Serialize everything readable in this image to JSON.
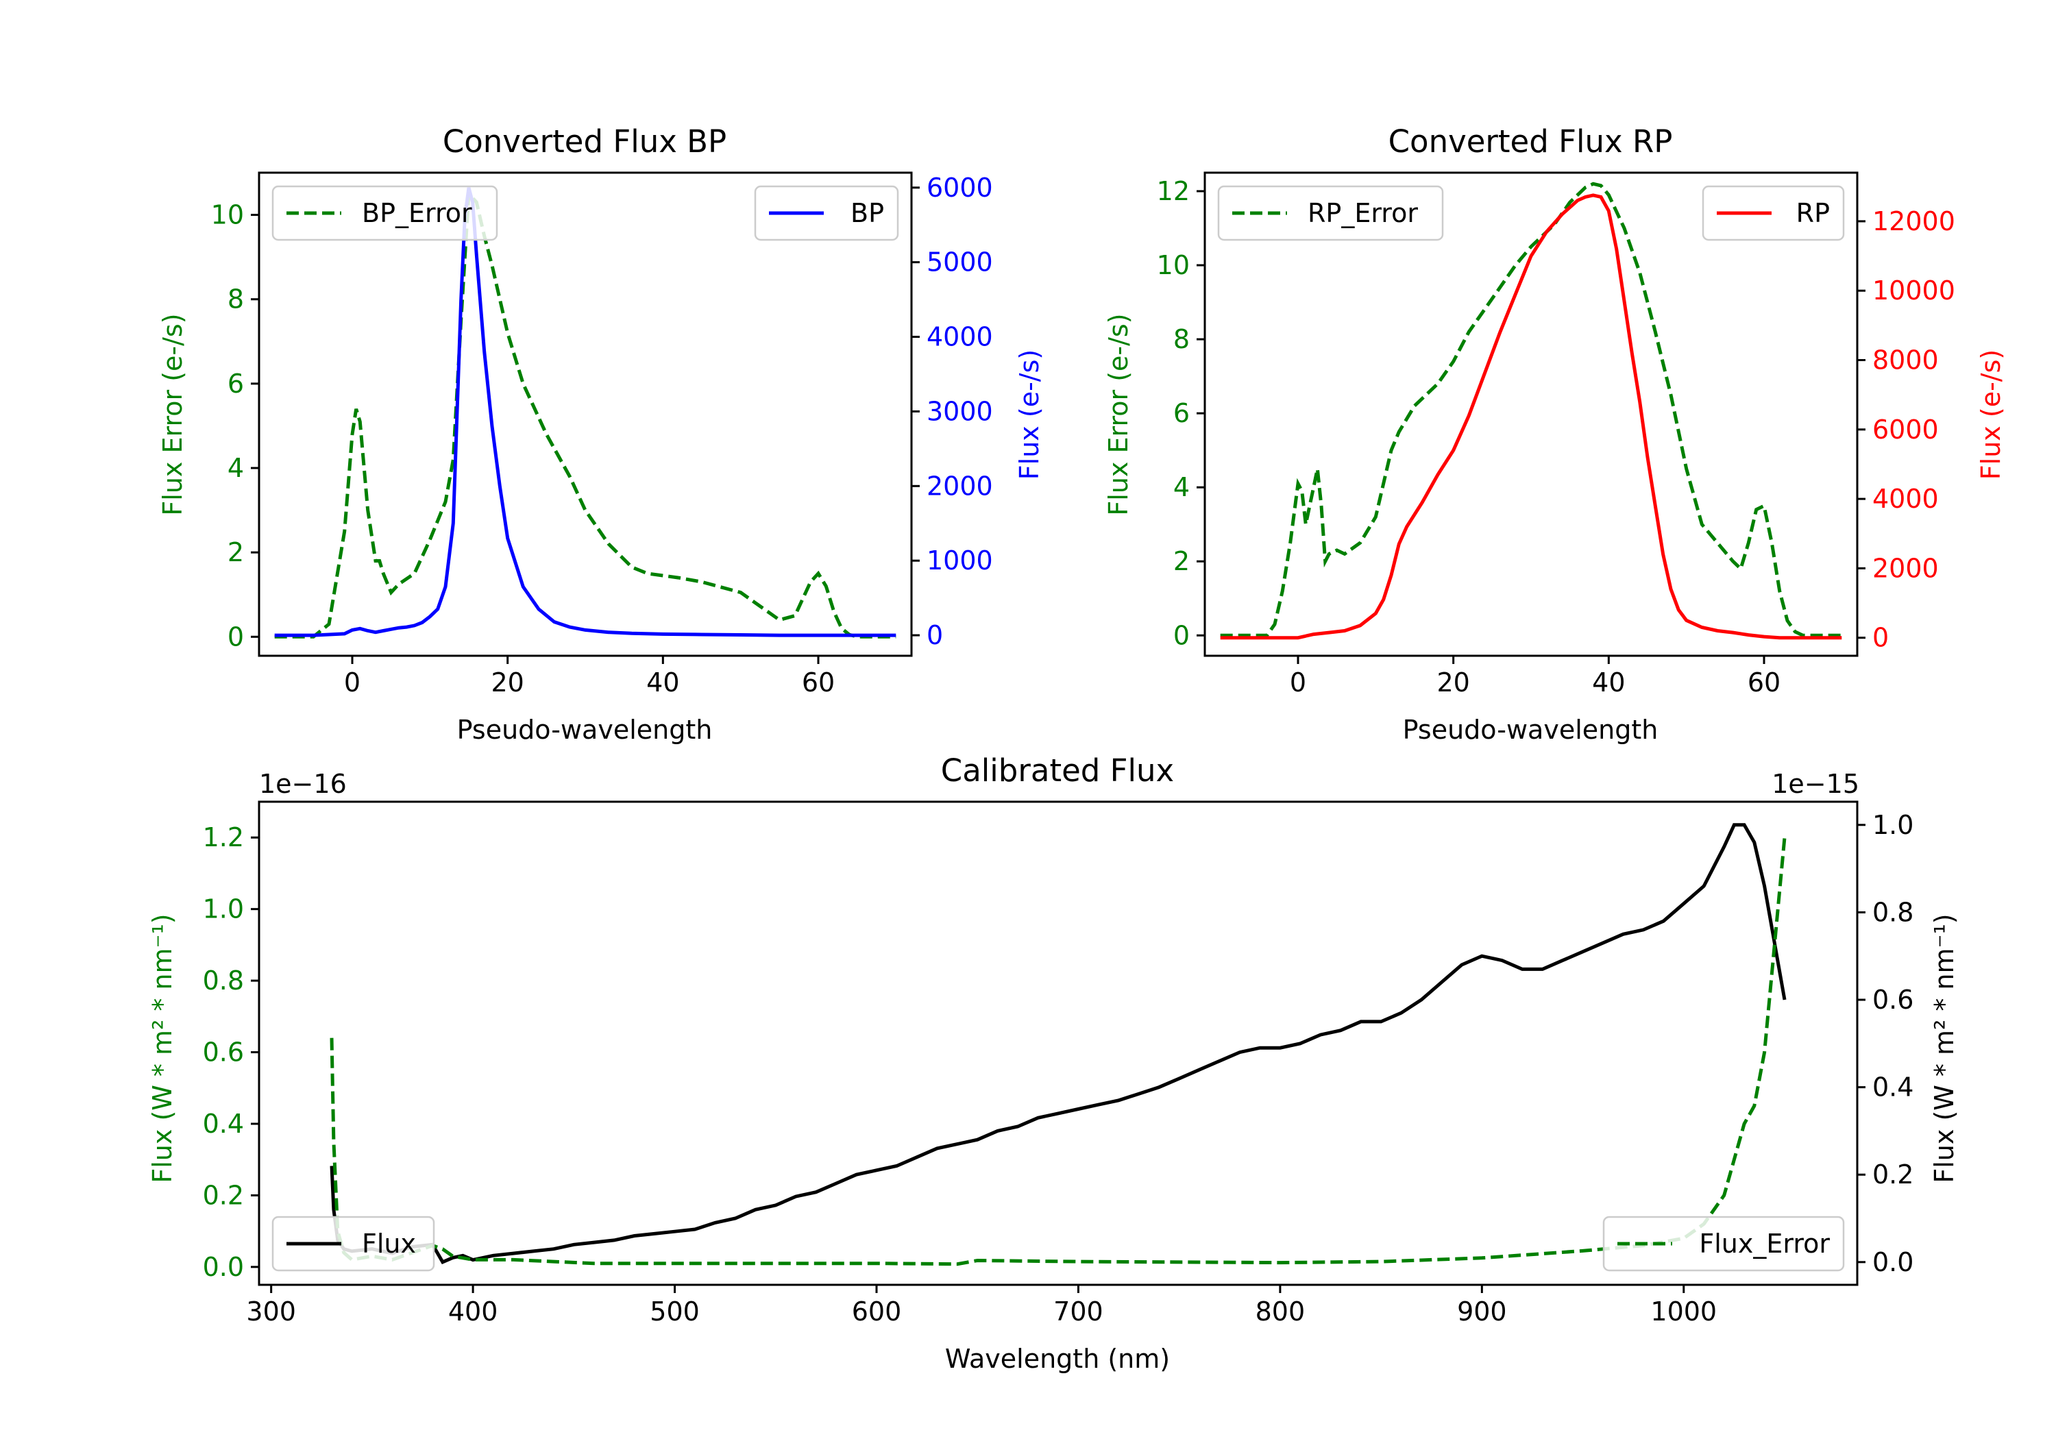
{
  "colors": {
    "error": "#008000",
    "bp": "#0000ff",
    "rp": "#ff0000",
    "flux": "#000000",
    "axis": "#000000"
  },
  "chart_data": [
    {
      "id": "bp",
      "type": "line",
      "title": "Converted Flux BP",
      "xlabel": "Pseudo-wavelength",
      "ylabel_left": "Flux Error (e-/s)",
      "ylabel_right": "Flux (e-/s)",
      "xlim": [
        -12,
        72
      ],
      "ylim_left": [
        -0.45,
        11.0
      ],
      "ylim_right": [
        -275,
        6200
      ],
      "xticks": [
        0,
        20,
        40,
        60
      ],
      "yticks_left": [
        0,
        2,
        4,
        6,
        8,
        10
      ],
      "yticks_right": [
        0,
        1000,
        2000,
        3000,
        4000,
        5000,
        6000
      ],
      "legend_left": "BP_Error",
      "legend_right": "BP",
      "series_error": {
        "name": "BP_Error",
        "x": [
          -10,
          -5,
          -3,
          -1,
          0,
          0.5,
          1,
          2,
          3,
          3.5,
          4,
          5,
          6,
          8,
          10,
          12,
          13,
          14,
          15,
          16,
          17,
          18,
          20,
          22,
          25,
          28,
          30,
          33,
          36,
          38,
          40,
          42,
          45,
          50,
          55,
          57,
          58,
          59,
          60,
          61,
          62,
          63,
          64,
          65,
          67,
          70
        ],
        "y": [
          0,
          0,
          0.3,
          2.5,
          4.8,
          5.4,
          5.1,
          3.0,
          1.8,
          1.8,
          1.5,
          1.05,
          1.25,
          1.5,
          2.3,
          3.2,
          4.2,
          7.5,
          10.5,
          10.3,
          9.5,
          8.8,
          7.2,
          6.0,
          4.8,
          3.8,
          3.0,
          2.2,
          1.65,
          1.5,
          1.45,
          1.4,
          1.3,
          1.05,
          0.4,
          0.5,
          0.9,
          1.3,
          1.5,
          1.2,
          0.6,
          0.2,
          0.05,
          0,
          0,
          0
        ]
      },
      "series_flux": {
        "name": "BP",
        "x": [
          -10,
          -5,
          -1,
          0,
          1,
          2,
          3,
          4,
          5,
          6,
          7,
          8,
          9,
          10,
          11,
          12,
          13,
          14,
          14.5,
          15,
          15.5,
          16,
          17,
          18,
          19,
          20,
          22,
          24,
          26,
          28,
          30,
          33,
          36,
          40,
          45,
          50,
          55,
          60,
          65,
          70
        ],
        "y": [
          0,
          0,
          20,
          70,
          90,
          60,
          40,
          60,
          80,
          100,
          110,
          130,
          170,
          250,
          350,
          650,
          1500,
          4500,
          5600,
          6000,
          5800,
          5100,
          3800,
          2800,
          2000,
          1300,
          650,
          350,
          180,
          110,
          70,
          40,
          25,
          15,
          10,
          5,
          0,
          0,
          0,
          0
        ]
      }
    },
    {
      "id": "rp",
      "type": "line",
      "title": "Converted Flux RP",
      "xlabel": "Pseudo-wavelength",
      "ylabel_left": "Flux Error (e-/s)",
      "ylabel_right": "Flux (e-/s)",
      "xlim": [
        -12,
        72
      ],
      "ylim_left": [
        -0.55,
        12.5
      ],
      "ylim_right": [
        -520,
        13400
      ],
      "xticks": [
        0,
        20,
        40,
        60
      ],
      "yticks_left": [
        0,
        2,
        4,
        6,
        8,
        10,
        12
      ],
      "yticks_right": [
        0,
        2000,
        4000,
        6000,
        8000,
        10000,
        12000
      ],
      "legend_left": "RP_Error",
      "legend_right": "RP",
      "series_error": {
        "name": "RP_Error",
        "x": [
          -10,
          -4,
          -3,
          -2,
          -1,
          0,
          0.5,
          1,
          2,
          2.5,
          3,
          3.5,
          4,
          5,
          6,
          8,
          10,
          12,
          13,
          15,
          18,
          20,
          22,
          24,
          26,
          28,
          30,
          33,
          35,
          37,
          38,
          39,
          40,
          42,
          44,
          46,
          48,
          50,
          52,
          54,
          56,
          57,
          58,
          59,
          60,
          61,
          62,
          63,
          64,
          65,
          70
        ],
        "y": [
          0,
          0,
          0.3,
          1.2,
          2.5,
          4.1,
          3.9,
          3.0,
          4.0,
          4.5,
          3.5,
          2.0,
          2.2,
          2.3,
          2.2,
          2.5,
          3.2,
          5.0,
          5.5,
          6.2,
          6.8,
          7.4,
          8.2,
          8.8,
          9.4,
          10.0,
          10.5,
          11.1,
          11.7,
          12.1,
          12.2,
          12.15,
          11.9,
          11.0,
          9.8,
          8.2,
          6.5,
          4.5,
          3.0,
          2.5,
          2.0,
          1.8,
          2.5,
          3.4,
          3.5,
          2.5,
          1.2,
          0.4,
          0.1,
          0,
          0
        ]
      },
      "series_flux": {
        "name": "RP",
        "x": [
          -10,
          -5,
          0,
          2,
          4,
          6,
          8,
          10,
          11,
          12,
          13,
          14,
          16,
          18,
          20,
          22,
          24,
          26,
          28,
          30,
          32,
          34,
          36,
          37,
          38,
          39,
          40,
          41,
          42,
          43,
          44,
          45,
          46,
          47,
          48,
          49,
          50,
          52,
          54,
          56,
          58,
          60,
          62,
          65,
          70
        ],
        "y": [
          0,
          0,
          0,
          100,
          150,
          200,
          350,
          700,
          1100,
          1800,
          2700,
          3200,
          3900,
          4700,
          5400,
          6400,
          7600,
          8800,
          9900,
          11000,
          11700,
          12200,
          12600,
          12700,
          12750,
          12700,
          12300,
          11200,
          9700,
          8200,
          6800,
          5200,
          3800,
          2400,
          1400,
          800,
          500,
          300,
          200,
          150,
          80,
          30,
          0,
          0,
          0
        ]
      }
    },
    {
      "id": "cal",
      "type": "line",
      "title": "Calibrated Flux",
      "xlabel": "Wavelength (nm)",
      "ylabel_left": "Flux (W * m² * nm⁻¹)",
      "ylabel_right": "Flux (W * m² * nm⁻¹)",
      "offset_left": "1e−16",
      "offset_right": "1e−15",
      "xlim": [
        294,
        1086
      ],
      "ylim_left": [
        -0.05,
        1.3
      ],
      "ylim_right": [
        -0.052,
        1.053
      ],
      "xticks": [
        300,
        400,
        500,
        600,
        700,
        800,
        900,
        1000
      ],
      "yticks_left": [
        0.0,
        0.2,
        0.4,
        0.6,
        0.8,
        1.0,
        1.2
      ],
      "ytick_labels_left": [
        "0.0",
        "0.2",
        "0.4",
        "0.6",
        "0.8",
        "1.0",
        "1.2"
      ],
      "yticks_right": [
        0.0,
        0.2,
        0.4,
        0.6,
        0.8,
        1.0
      ],
      "ytick_labels_right": [
        "0.0",
        "0.2",
        "0.4",
        "0.6",
        "0.8",
        "1.0"
      ],
      "legend_left": "Flux",
      "legend_right": "Flux_Error",
      "series_error": {
        "name": "Flux_Error",
        "x": [
          330,
          331,
          333,
          336,
          340,
          350,
          360,
          370,
          380,
          385,
          390,
          400,
          420,
          440,
          460,
          500,
          550,
          600,
          640,
          650,
          700,
          800,
          850,
          900,
          950,
          980,
          1000,
          1010,
          1020,
          1025,
          1030,
          1035,
          1040,
          1045,
          1050
        ],
        "y": [
          0.64,
          0.35,
          0.1,
          0.04,
          0.02,
          0.03,
          0.02,
          0.04,
          0.06,
          0.05,
          0.03,
          0.02,
          0.02,
          0.015,
          0.01,
          0.01,
          0.01,
          0.01,
          0.008,
          0.018,
          0.015,
          0.012,
          0.015,
          0.025,
          0.045,
          0.06,
          0.08,
          0.12,
          0.2,
          0.3,
          0.4,
          0.45,
          0.6,
          0.9,
          1.2
        ]
      },
      "series_flux": {
        "name": "Flux",
        "x": [
          330,
          331,
          333,
          336,
          340,
          350,
          360,
          370,
          380,
          385,
          390,
          395,
          400,
          410,
          420,
          430,
          440,
          450,
          460,
          470,
          480,
          490,
          500,
          510,
          520,
          530,
          540,
          550,
          560,
          570,
          580,
          590,
          600,
          610,
          620,
          630,
          640,
          650,
          660,
          670,
          680,
          690,
          700,
          710,
          720,
          730,
          740,
          750,
          760,
          770,
          780,
          790,
          800,
          810,
          820,
          830,
          840,
          850,
          860,
          870,
          880,
          890,
          900,
          910,
          920,
          930,
          940,
          950,
          960,
          970,
          980,
          990,
          1000,
          1010,
          1020,
          1025,
          1030,
          1035,
          1040,
          1045,
          1050
        ],
        "y": [
          0.22,
          0.12,
          0.05,
          0.03,
          0.025,
          0.03,
          0.02,
          0.035,
          0.04,
          0.0,
          0.01,
          0.015,
          0.005,
          0.015,
          0.02,
          0.025,
          0.03,
          0.04,
          0.045,
          0.05,
          0.06,
          0.065,
          0.07,
          0.075,
          0.09,
          0.1,
          0.12,
          0.13,
          0.15,
          0.16,
          0.18,
          0.2,
          0.21,
          0.22,
          0.24,
          0.26,
          0.27,
          0.28,
          0.3,
          0.31,
          0.33,
          0.34,
          0.35,
          0.36,
          0.37,
          0.385,
          0.4,
          0.42,
          0.44,
          0.46,
          0.48,
          0.49,
          0.49,
          0.5,
          0.52,
          0.53,
          0.55,
          0.55,
          0.57,
          0.6,
          0.64,
          0.68,
          0.7,
          0.69,
          0.67,
          0.67,
          0.69,
          0.71,
          0.73,
          0.75,
          0.76,
          0.78,
          0.82,
          0.86,
          0.95,
          1.0,
          1.0,
          0.96,
          0.86,
          0.73,
          0.6
        ]
      }
    }
  ]
}
